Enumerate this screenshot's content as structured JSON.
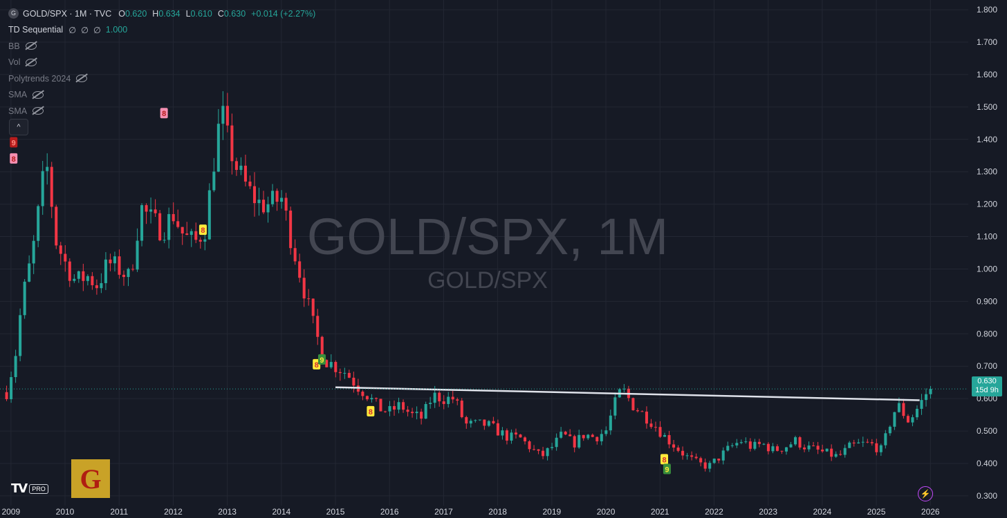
{
  "symbol": {
    "icon": "G",
    "title": "GOLD/SPX · 1M · TVC"
  },
  "ohlc": [
    {
      "k": "O",
      "v": "0.620"
    },
    {
      "k": "H",
      "v": "0.634"
    },
    {
      "k": "L",
      "v": "0.610"
    },
    {
      "k": "C",
      "v": "0.630"
    }
  ],
  "change": "+0.014 (+2.27%)",
  "indicators": [
    {
      "name": "TD Sequential",
      "flags": [
        "∅",
        "∅",
        "∅"
      ],
      "value": "1.000",
      "hidden": false
    },
    {
      "name": "BB",
      "hidden": true
    },
    {
      "name": "Vol",
      "hidden": true
    },
    {
      "name": "Polytrends 2024",
      "hidden": true
    },
    {
      "name": "SMA",
      "hidden": true
    },
    {
      "name": "SMA",
      "hidden": true
    }
  ],
  "collapse_label": "^",
  "price_badge": {
    "price": "0.630",
    "countdown": "15d 9h"
  },
  "colors": {
    "up": "#26a69a",
    "down": "#f23645",
    "background": "#161a25",
    "grid": "#232733",
    "trendline": "#e0e3eb",
    "watermark": "#434651",
    "badge": "#26a69a"
  },
  "icons": [
    "eye-off-icon",
    "chevron-up-icon",
    "lightning-icon"
  ],
  "logos": {
    "tradingview_badge": "PRO",
    "g_logo_letter": "G"
  },
  "chart_data": {
    "type": "candlestick",
    "watermark_title": "GOLD/SPX, 1M",
    "watermark_subtitle": "GOLD/SPX",
    "ylim": [
      0.27,
      1.83
    ],
    "y_ticks": [
      "1.800",
      "1.700",
      "1.600",
      "1.500",
      "1.400",
      "1.300",
      "1.200",
      "1.100",
      "1.000",
      "0.900",
      "0.800",
      "0.700",
      "0.600",
      "0.500",
      "0.400",
      "0.300"
    ],
    "x_ticks": [
      "2009",
      "2010",
      "2011",
      "2012",
      "2013",
      "2014",
      "2015",
      "2016",
      "2017",
      "2018",
      "2019",
      "2020",
      "2021",
      "2022",
      "2023",
      "2024",
      "2025",
      "2026"
    ],
    "x_range": [
      2008.9,
      2026.7
    ],
    "grid": true,
    "last_price": 0.63,
    "trendline": {
      "x": [
        2015.0,
        2025.8
      ],
      "y": [
        0.635,
        0.595
      ]
    },
    "anchors": [
      [
        2008.92,
        0.62
      ],
      [
        2009.1,
        0.75
      ],
      [
        2009.2,
        0.9
      ],
      [
        2009.4,
        1.05
      ],
      [
        2009.6,
        1.28
      ],
      [
        2009.7,
        1.32
      ],
      [
        2009.8,
        1.1
      ],
      [
        2010.0,
        1.02
      ],
      [
        2010.2,
        0.96
      ],
      [
        2010.4,
        0.98
      ],
      [
        2010.6,
        0.95
      ],
      [
        2010.8,
        1.02
      ],
      [
        2011.0,
        1.0
      ],
      [
        2011.2,
        0.97
      ],
      [
        2011.4,
        1.19
      ],
      [
        2011.6,
        1.15
      ],
      [
        2011.8,
        1.12
      ],
      [
        2012.0,
        1.17
      ],
      [
        2012.2,
        1.1
      ],
      [
        2012.4,
        1.08
      ],
      [
        2012.6,
        1.13
      ],
      [
        2012.8,
        1.4
      ],
      [
        2012.9,
        1.48
      ],
      [
        2013.0,
        1.4
      ],
      [
        2013.2,
        1.3
      ],
      [
        2013.4,
        1.24
      ],
      [
        2013.6,
        1.2
      ],
      [
        2013.8,
        1.2
      ],
      [
        2014.0,
        1.22
      ],
      [
        2014.2,
        1.08
      ],
      [
        2014.4,
        0.95
      ],
      [
        2014.6,
        0.82
      ],
      [
        2014.8,
        0.72
      ],
      [
        2015.0,
        0.7
      ],
      [
        2015.2,
        0.68
      ],
      [
        2015.4,
        0.64
      ],
      [
        2015.6,
        0.61
      ],
      [
        2015.8,
        0.57
      ],
      [
        2016.0,
        0.56
      ],
      [
        2016.2,
        0.58
      ],
      [
        2016.4,
        0.55
      ],
      [
        2016.6,
        0.54
      ],
      [
        2016.8,
        0.61
      ],
      [
        2017.0,
        0.6
      ],
      [
        2017.2,
        0.6
      ],
      [
        2017.4,
        0.52
      ],
      [
        2017.6,
        0.52
      ],
      [
        2017.8,
        0.52
      ],
      [
        2018.0,
        0.5
      ],
      [
        2018.2,
        0.48
      ],
      [
        2018.4,
        0.48
      ],
      [
        2018.6,
        0.45
      ],
      [
        2018.8,
        0.42
      ],
      [
        2019.0,
        0.45
      ],
      [
        2019.2,
        0.49
      ],
      [
        2019.4,
        0.46
      ],
      [
        2019.6,
        0.49
      ],
      [
        2019.8,
        0.48
      ],
      [
        2020.0,
        0.5
      ],
      [
        2020.2,
        0.6
      ],
      [
        2020.3,
        0.63
      ],
      [
        2020.5,
        0.58
      ],
      [
        2020.7,
        0.55
      ],
      [
        2020.9,
        0.52
      ],
      [
        2021.1,
        0.48
      ],
      [
        2021.3,
        0.45
      ],
      [
        2021.5,
        0.42
      ],
      [
        2021.7,
        0.4
      ],
      [
        2021.9,
        0.39
      ],
      [
        2022.1,
        0.42
      ],
      [
        2022.3,
        0.45
      ],
      [
        2022.5,
        0.47
      ],
      [
        2022.7,
        0.45
      ],
      [
        2022.9,
        0.46
      ],
      [
        2023.1,
        0.44
      ],
      [
        2023.3,
        0.45
      ],
      [
        2023.5,
        0.47
      ],
      [
        2023.7,
        0.45
      ],
      [
        2023.9,
        0.44
      ],
      [
        2024.1,
        0.43
      ],
      [
        2024.3,
        0.42
      ],
      [
        2024.5,
        0.45
      ],
      [
        2024.7,
        0.46
      ],
      [
        2024.9,
        0.46
      ],
      [
        2025.1,
        0.44
      ],
      [
        2025.3,
        0.55
      ],
      [
        2025.4,
        0.58
      ],
      [
        2025.6,
        0.53
      ],
      [
        2025.8,
        0.58
      ],
      [
        2025.97,
        0.63
      ]
    ],
    "td_labels": [
      {
        "x": 2009.05,
        "y": 1.34,
        "text": "8",
        "style": "pink"
      },
      {
        "x": 2009.05,
        "y": 1.39,
        "text": "9",
        "style": "red"
      },
      {
        "x": 2011.83,
        "y": 1.48,
        "text": "8",
        "style": "pink"
      },
      {
        "x": 2012.55,
        "y": 1.12,
        "text": "8",
        "style": "yellow"
      },
      {
        "x": 2014.65,
        "y": 0.705,
        "text": "8",
        "style": "yellow"
      },
      {
        "x": 2014.75,
        "y": 0.72,
        "text": "9",
        "style": "green"
      },
      {
        "x": 2015.65,
        "y": 0.56,
        "text": "8",
        "style": "yellow"
      },
      {
        "x": 2021.08,
        "y": 0.412,
        "text": "8",
        "style": "yellow"
      },
      {
        "x": 2021.13,
        "y": 0.382,
        "text": "9",
        "style": "green"
      }
    ]
  }
}
